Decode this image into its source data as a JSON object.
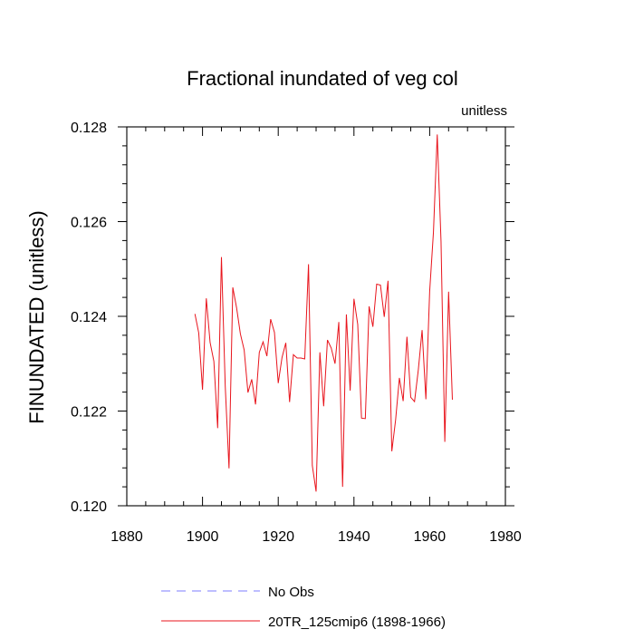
{
  "chart_data": {
    "type": "line",
    "title": "Fractional inundated of veg col",
    "units_label": "unitless",
    "ylabel": "FINUNDATED  (unitless)",
    "xlabel": "",
    "xlim": [
      1880,
      1980
    ],
    "ylim": [
      0.12,
      0.128
    ],
    "xticks": [
      1880,
      1900,
      1920,
      1940,
      1960,
      1980
    ],
    "xtick_labels": [
      "1880",
      "1900",
      "1920",
      "1940",
      "1960",
      "1980"
    ],
    "yticks": [
      0.12,
      0.122,
      0.124,
      0.126,
      0.128
    ],
    "ytick_labels": [
      "0.120",
      "0.122",
      "0.124",
      "0.126",
      "0.128"
    ],
    "grid": false,
    "legend_position": "bottom",
    "series": [
      {
        "name": "20TR_125cmip6 (1898-1966)",
        "color": "#e8141c",
        "style": "solid",
        "x": [
          1898,
          1899,
          1900,
          1901,
          1902,
          1903,
          1904,
          1905,
          1906,
          1907,
          1908,
          1909,
          1910,
          1911,
          1912,
          1913,
          1914,
          1915,
          1916,
          1917,
          1918,
          1919,
          1920,
          1921,
          1922,
          1923,
          1924,
          1925,
          1926,
          1927,
          1928,
          1929,
          1930,
          1931,
          1932,
          1933,
          1934,
          1935,
          1936,
          1937,
          1938,
          1939,
          1940,
          1941,
          1942,
          1943,
          1944,
          1945,
          1946,
          1947,
          1948,
          1949,
          1950,
          1951,
          1952,
          1953,
          1954,
          1955,
          1956,
          1957,
          1958,
          1959,
          1960,
          1961,
          1962,
          1963,
          1964,
          1965,
          1966
        ],
        "values": [
          0.12405,
          0.12365,
          0.12245,
          0.12438,
          0.12345,
          0.12305,
          0.12164,
          0.12525,
          0.12253,
          0.12079,
          0.12461,
          0.12418,
          0.12363,
          0.12329,
          0.12239,
          0.12267,
          0.12214,
          0.12324,
          0.12346,
          0.12316,
          0.12394,
          0.12366,
          0.12259,
          0.12313,
          0.12344,
          0.12219,
          0.12319,
          0.12312,
          0.12312,
          0.1231,
          0.1251,
          0.12085,
          0.1203,
          0.12324,
          0.1221,
          0.1235,
          0.12333,
          0.123,
          0.12388,
          0.1204,
          0.12404,
          0.12243,
          0.12437,
          0.12383,
          0.12185,
          0.12184,
          0.12421,
          0.12378,
          0.12468,
          0.12466,
          0.12399,
          0.12475,
          0.12115,
          0.12181,
          0.1227,
          0.12221,
          0.12357,
          0.12229,
          0.1222,
          0.12287,
          0.12371,
          0.12225,
          0.12453,
          0.12578,
          0.12784,
          0.12558,
          0.12135,
          0.12452,
          0.12224
        ]
      },
      {
        "name": "No Obs",
        "color": "#7d7dff",
        "style": "dashed",
        "x": [],
        "values": []
      }
    ]
  }
}
